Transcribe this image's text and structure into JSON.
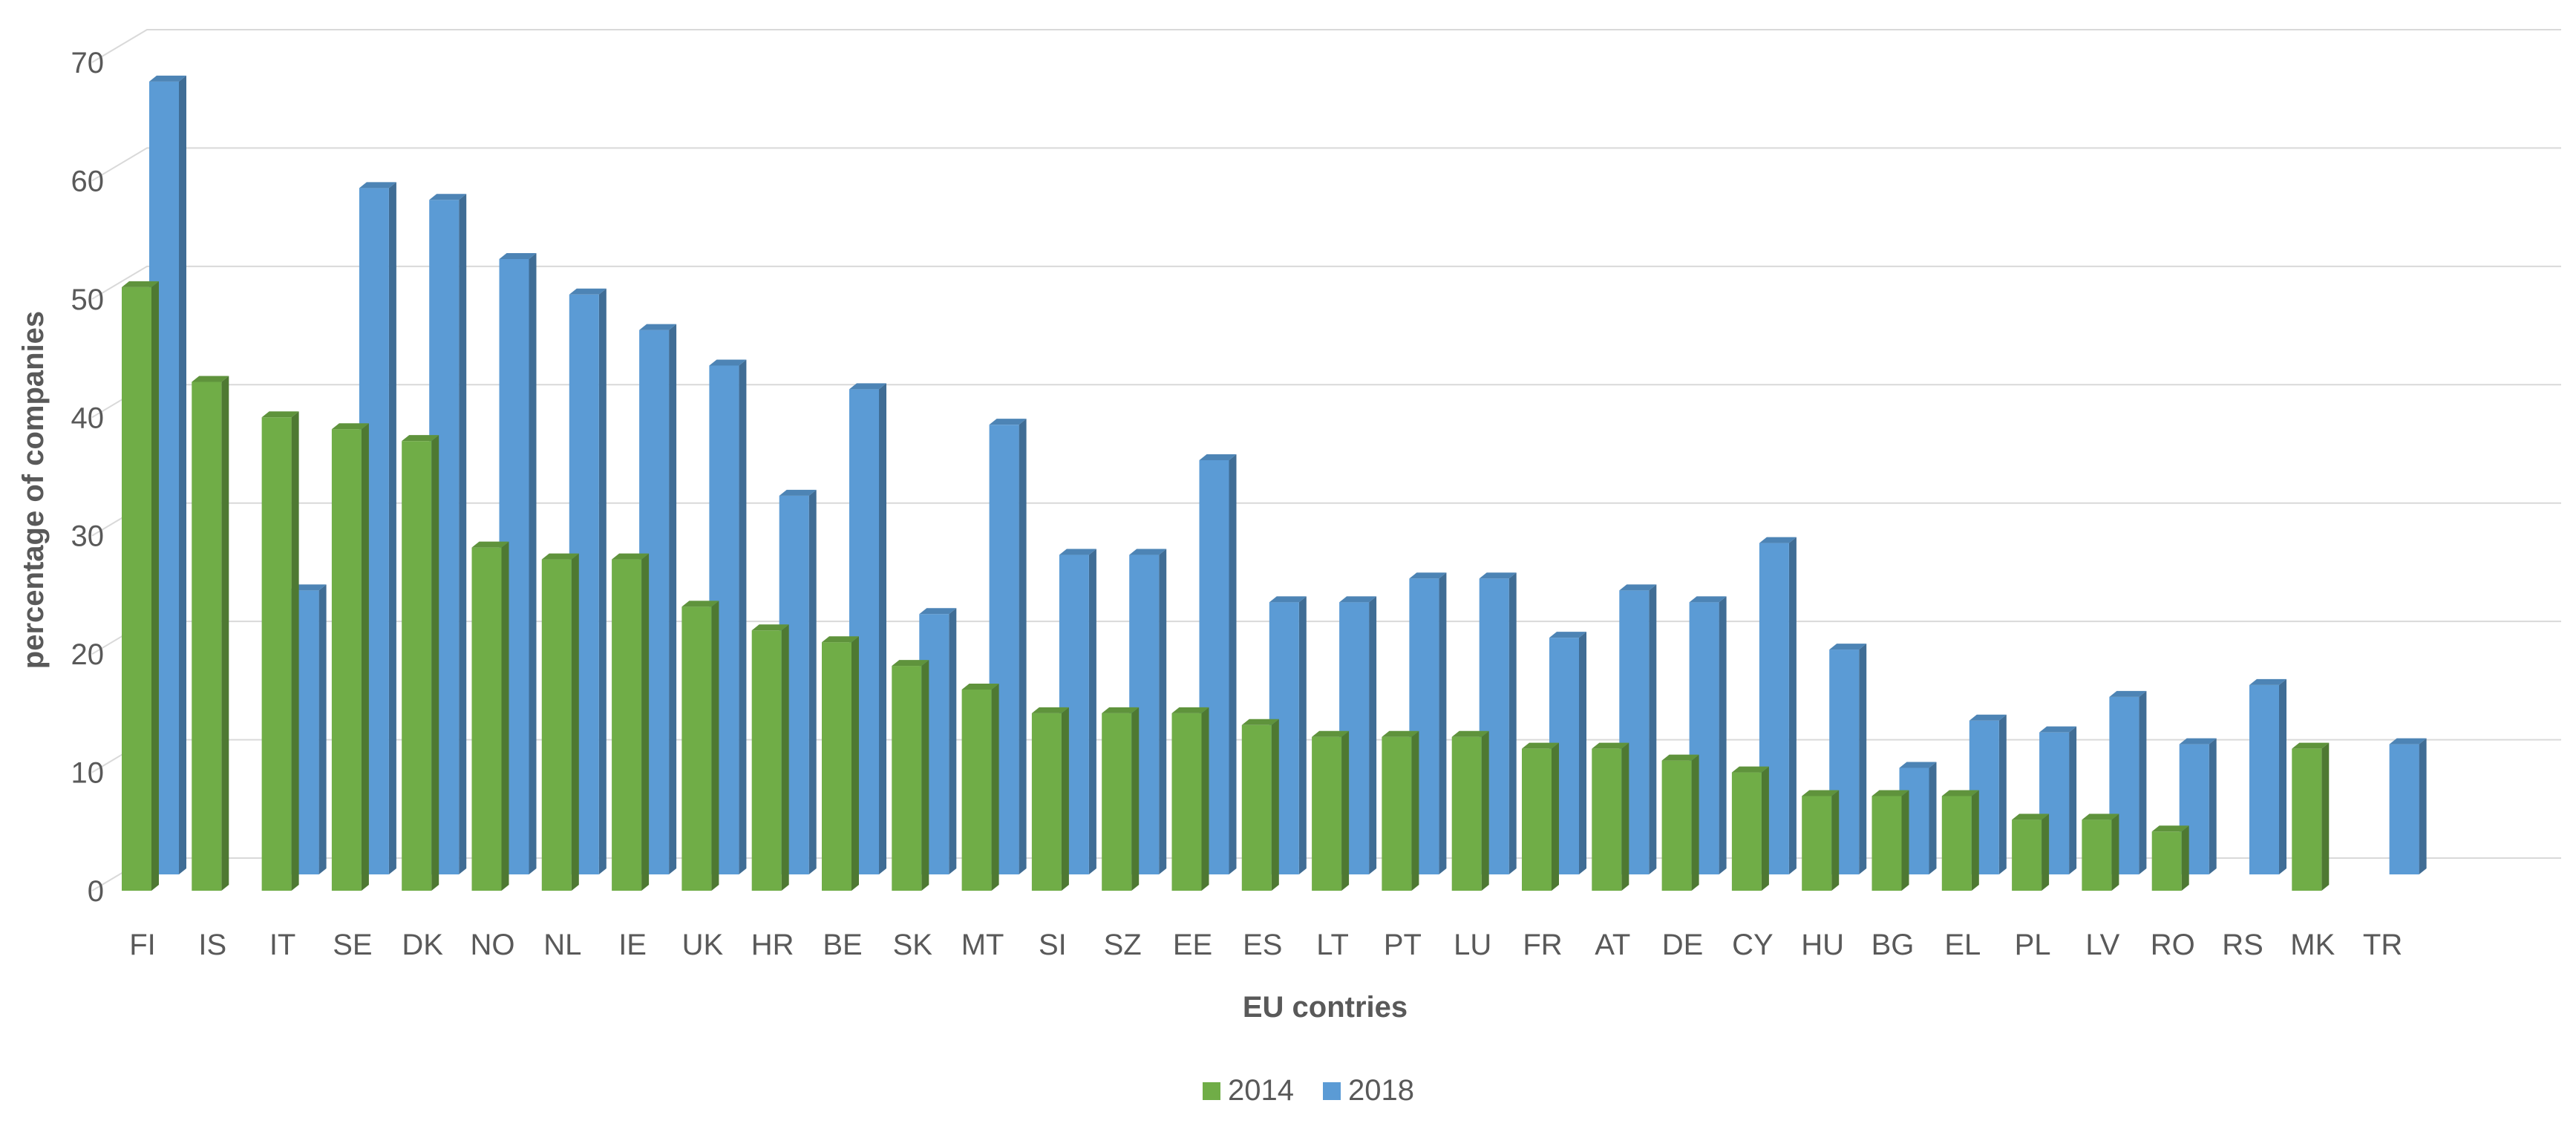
{
  "chart_data": {
    "type": "bar",
    "style": "3d-clustered-column",
    "title": "",
    "xlabel": "EU contries",
    "ylabel": "percentage of companies",
    "ylim": [
      0,
      70
    ],
    "yticks": [
      0,
      10,
      20,
      30,
      40,
      50,
      60,
      70
    ],
    "grid": true,
    "legend_position": "bottom",
    "categories": [
      "FI",
      "IS",
      "IT",
      "SE",
      "DK",
      "NO",
      "NL",
      "IE",
      "UK",
      "HR",
      "BE",
      "SK",
      "MT",
      "SI",
      "SZ",
      "EE",
      "ES",
      "LT",
      "PT",
      "LU",
      "FR",
      "AT",
      "DE",
      "CY",
      "HU",
      "BG",
      "EL",
      "PL",
      "LV",
      "RO",
      "RS",
      "MK",
      "TR"
    ],
    "series": [
      {
        "name": "2014",
        "color": "#70ad47",
        "values": [
          51,
          43,
          40,
          39,
          38,
          29,
          28,
          28,
          24,
          22,
          21,
          19,
          17,
          15,
          15,
          15,
          14,
          13,
          13,
          13,
          12,
          12,
          11,
          10,
          8,
          8,
          8,
          6,
          6,
          5,
          null,
          12,
          null
        ]
      },
      {
        "name": "2018",
        "color": "#5b9bd5",
        "values": [
          67,
          null,
          24,
          58,
          57,
          52,
          49,
          46,
          43,
          32,
          41,
          22,
          38,
          27,
          27,
          35,
          23,
          23,
          25,
          25,
          20,
          24,
          23,
          28,
          19,
          9,
          13,
          12,
          15,
          11,
          16,
          null,
          11
        ]
      }
    ]
  }
}
